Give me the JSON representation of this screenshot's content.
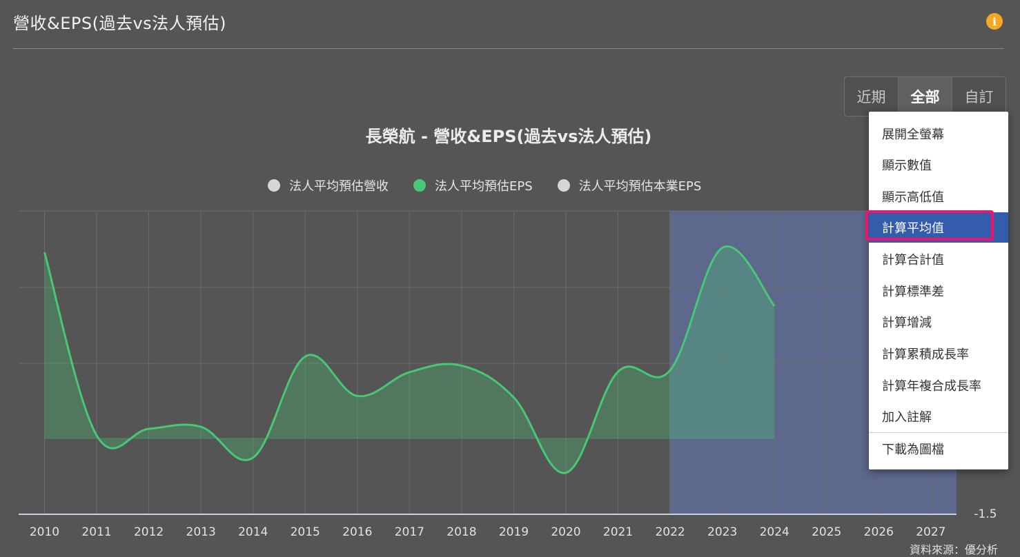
{
  "header": {
    "title": "營收&EPS(過去vs法人預估)",
    "info_icon": "info-icon"
  },
  "range_buttons": [
    {
      "label": "近期",
      "active": false
    },
    {
      "label": "全部",
      "active": true
    },
    {
      "label": "自訂",
      "active": false
    }
  ],
  "chart_data": {
    "type": "area",
    "title": "長榮航 - 營收&EPS(過去vs法人預估)",
    "x": [
      2010,
      2011,
      2012,
      2013,
      2014,
      2015,
      2016,
      2017,
      2018,
      2019,
      2020,
      2021,
      2022,
      2023,
      2024
    ],
    "x_axis_ticks": [
      "2010",
      "2011",
      "2012",
      "2013",
      "2014",
      "2015",
      "2016",
      "2017",
      "2018",
      "2019",
      "2020",
      "2021",
      "2022",
      "2023",
      "2024",
      "2025",
      "2026",
      "2027"
    ],
    "y_axis_visible_tick": "-1.5",
    "ylim": [
      -1.5,
      4.5
    ],
    "baseline": 0,
    "grid": true,
    "legend_position": "top-center",
    "legend": [
      {
        "name": "法人平均預估營收",
        "color": "#d6d6d6",
        "active": false
      },
      {
        "name": "法人平均預估EPS",
        "color": "#48c774",
        "active": true
      },
      {
        "name": "法人平均預估本業EPS",
        "color": "#d6d6d6",
        "active": false
      }
    ],
    "series": [
      {
        "name": "法人平均預估EPS",
        "color": "#48c774",
        "values": [
          3.68,
          0.06,
          0.19,
          0.23,
          -0.38,
          1.62,
          0.84,
          1.31,
          1.44,
          0.81,
          -0.68,
          1.32,
          1.35,
          3.77,
          2.62
        ]
      }
    ],
    "forecast_region": {
      "from": 2022,
      "to": 2027,
      "color": "#5e6a8f"
    }
  },
  "context_menu": {
    "items": [
      "展開全螢幕",
      "顯示數值",
      "顯示高低值",
      "計算平均值",
      "計算合計值",
      "計算標準差",
      "計算增減",
      "計算累積成長率",
      "計算年複合成長率",
      "加入註解",
      "下載為圖檔"
    ],
    "highlighted_index": 3,
    "highlight_color": "#335cad",
    "annotation_color": "#f0146e"
  },
  "footer": {
    "source": "資料來源：優分析"
  }
}
